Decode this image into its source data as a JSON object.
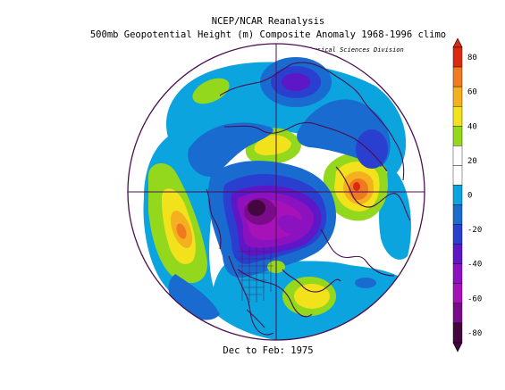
{
  "header": {
    "line1": "NCEP/NCAR Reanalysis",
    "line2": "500mb Geopotential Height (m) Composite Anomaly 1968-1996 climo",
    "credit": "NOAA/ESRL Physical Sciences Division"
  },
  "footer": {
    "period": "Dec to Feb: 1975"
  },
  "colorbar": {
    "levels": [
      80,
      60,
      40,
      20,
      0,
      -20,
      -40,
      -60,
      -80
    ],
    "labels": [
      "80",
      "60",
      "40",
      "20",
      "0",
      "-20",
      "-40",
      "-60",
      "-80"
    ],
    "colors": [
      "#dc2a10",
      "#f07a20",
      "#f5b020",
      "#f2e21c",
      "#94d81e",
      "#ffffff",
      "#ffffff",
      "#0ba4de",
      "#1a6bd0",
      "#2a3fcf",
      "#5e17c7",
      "#8c11bf",
      "#a712b8",
      "#7a0c8a",
      "#43063f"
    ]
  },
  "map": {
    "projection": "north-polar-stereographic",
    "colors": {
      "white": "#ffffff",
      "light_blue": "#0ba4de",
      "mid_blue": "#1a6bd0",
      "dark_blue": "#2a3fcf",
      "blue_violet": "#5e17c7",
      "purple": "#8c11bf",
      "magenta_purple": "#a712b8",
      "deep_purple": "#7a0c8a",
      "darkest_purple": "#43063f",
      "green": "#94d81e",
      "yellow": "#f2e21c",
      "gold": "#f5b020",
      "orange": "#f07a20",
      "red": "#dc2a10",
      "coast": "#4a1050"
    }
  }
}
